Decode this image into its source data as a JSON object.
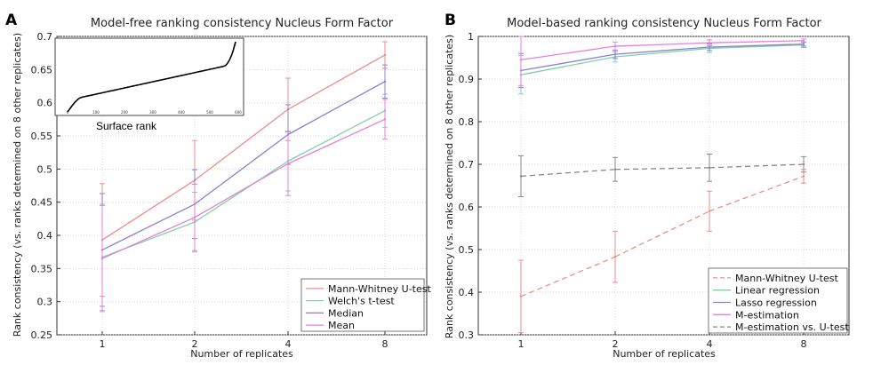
{
  "chart_data": [
    {
      "panel": "A",
      "type": "line",
      "title": "Model-free ranking consistency Nucleus Form Factor",
      "xlabel": "Number of replicates",
      "ylabel": "Rank consistency (vs. ranks determined on 8 other replicates)",
      "x": [
        1,
        2,
        4,
        8
      ],
      "xticks": [
        "1",
        "2",
        "4",
        "8"
      ],
      "ylim": [
        0.25,
        0.7
      ],
      "yticks": [
        "0.25",
        "0.3",
        "0.35",
        "0.4",
        "0.45",
        "0.5",
        "0.55",
        "0.6",
        "0.65",
        "0.7"
      ],
      "grid": true,
      "legend_position": "bottom-right",
      "series": [
        {
          "name": "Mann-Whitney U-test",
          "color": "#f08c8c",
          "style": "solid",
          "values": [
            0.393,
            0.483,
            0.59,
            0.672
          ],
          "err": [
            0.085,
            0.06,
            0.047,
            0.02
          ]
        },
        {
          "name": "Welch's t-test",
          "color": "#7fd2a6",
          "style": "solid",
          "values": [
            0.367,
            0.42,
            0.512,
            0.588
          ],
          "err": [
            0.08,
            0.045,
            0.045,
            0.025
          ]
        },
        {
          "name": "Median",
          "color": "#8c7fd0",
          "style": "solid",
          "values": [
            0.378,
            0.447,
            0.552,
            0.632
          ],
          "err": [
            0.085,
            0.052,
            0.045,
            0.025
          ]
        },
        {
          "name": "Mean",
          "color": "#e67fe0",
          "style": "solid",
          "values": [
            0.365,
            0.427,
            0.508,
            0.575
          ],
          "err": [
            0.08,
            0.05,
            0.048,
            0.03
          ]
        }
      ],
      "inset": {
        "xlabel": "Surface rank",
        "xticks": [
          "0",
          "100",
          "200",
          "300",
          "400",
          "500",
          "600"
        ]
      }
    },
    {
      "panel": "B",
      "type": "line",
      "title": "Model-based ranking consistency Nucleus Form Factor",
      "xlabel": "Number of replicates",
      "ylabel": "Rank consistency (vs. ranks determined on 8 other replicates)",
      "x": [
        1,
        2,
        4,
        8
      ],
      "xticks": [
        "1",
        "2",
        "4",
        "8"
      ],
      "ylim": [
        0.3,
        1.0
      ],
      "yticks": [
        "0.3",
        "0.4",
        "0.5",
        "0.6",
        "0.7",
        "0.8",
        "0.9",
        "1"
      ],
      "grid": true,
      "legend_position": "bottom-right",
      "series": [
        {
          "name": "Mann-Whitney U-test",
          "color": "#f08c8c",
          "style": "dashed",
          "values": [
            0.39,
            0.483,
            0.59,
            0.672
          ],
          "err": [
            0.085,
            0.06,
            0.047,
            0.016
          ]
        },
        {
          "name": "Linear regression",
          "color": "#7fd2a6",
          "style": "solid",
          "values": [
            0.91,
            0.952,
            0.972,
            0.98
          ],
          "err": [
            0.045,
            0.012,
            0.01,
            0.006
          ]
        },
        {
          "name": "Lasso regression",
          "color": "#8c7fd0",
          "style": "solid",
          "values": [
            0.92,
            0.958,
            0.975,
            0.982
          ],
          "err": [
            0.04,
            0.01,
            0.008,
            0.005
          ]
        },
        {
          "name": "M-estimation",
          "color": "#e67fe0",
          "style": "solid",
          "values": [
            0.945,
            0.977,
            0.985,
            0.99
          ],
          "err": [
            0.06,
            0.01,
            0.007,
            0.004
          ]
        },
        {
          "name": "M-estimation vs. U-test",
          "color": "#888888",
          "style": "dashed",
          "values": [
            0.672,
            0.688,
            0.692,
            0.7
          ],
          "err": [
            0.048,
            0.028,
            0.032,
            0.018
          ]
        }
      ]
    }
  ]
}
